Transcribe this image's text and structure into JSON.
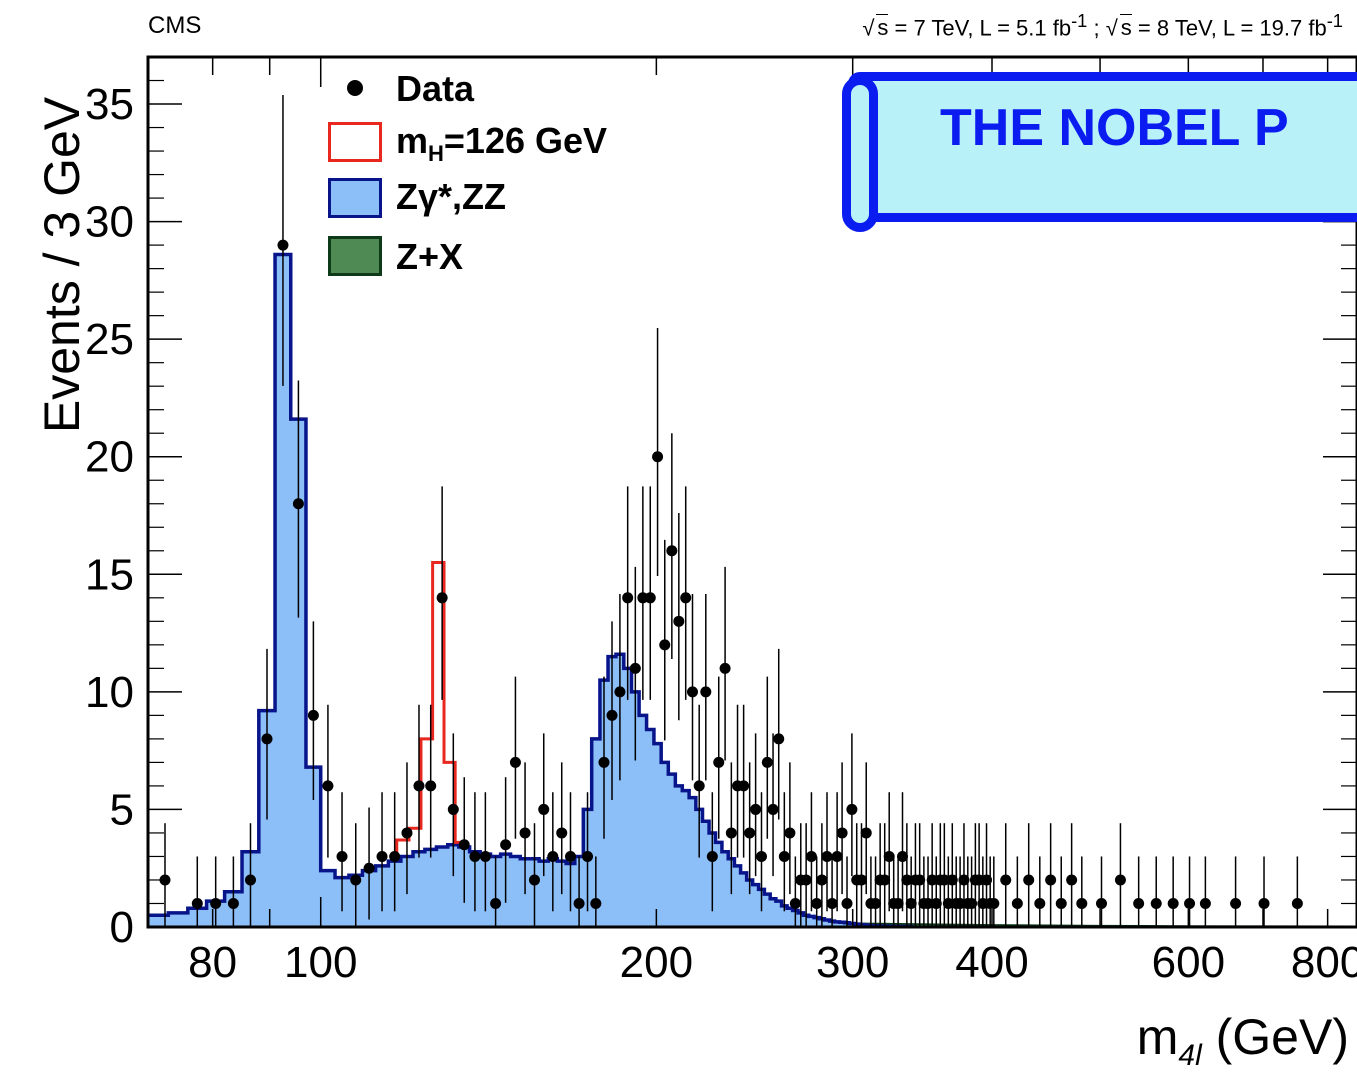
{
  "header": {
    "experiment": "CMS",
    "lumi_parts": [
      "s",
      " = 7 TeV, L = 5.1 fb",
      "-1",
      " ; ",
      "s",
      " = 8 TeV, L = 19.7 fb",
      "-1"
    ]
  },
  "banner": {
    "text": "THE NOBEL P"
  },
  "legend": [
    {
      "label": "Data",
      "icon": "dot-marker"
    },
    {
      "label_main": "m",
      "label_sub": "H",
      "label_rest": "=126 GeV",
      "icon": "red-outline-box"
    },
    {
      "label": "Zγ*,ZZ",
      "icon": "blue-filled-box"
    },
    {
      "label": "Z+X",
      "icon": "green-filled-box"
    }
  ],
  "colors": {
    "signal": "#e8281e",
    "zz_fill": "#8cbef8",
    "zz_line": "#08158a",
    "zx_fill": "#4f8a55",
    "zx_line": "#0d3b1a",
    "banner_fill": "#b8f2f8",
    "banner_border": "#0a1cf0"
  },
  "chart_data": {
    "type": "histogram",
    "title": "",
    "xlabel": "m4l (GeV)",
    "xlabel_main": "m",
    "xlabel_sub": "4l",
    "xlabel_rest": " (GeV)",
    "ylabel": "Events / 3 GeV",
    "x_scale": "log",
    "xlim": [
      70,
      850
    ],
    "ylim": [
      0,
      37
    ],
    "x_ticks": [
      80,
      100,
      200,
      300,
      400,
      600,
      800
    ],
    "y_ticks": [
      0,
      5,
      10,
      15,
      20,
      25,
      30,
      35
    ],
    "grid": false,
    "legend_position": "top-left",
    "bin_width_gev": 3,
    "bin_edges_start": 70,
    "series": [
      {
        "name": "Zγ*,ZZ",
        "style": "filled-step",
        "values": [
          0.5,
          0.6,
          0.8,
          1.1,
          1.5,
          3.2,
          9.2,
          28.6,
          21.6,
          6.8,
          2.4,
          2.1,
          2.2,
          2.4,
          2.6,
          2.8,
          3.0,
          3.2,
          3.3,
          3.4,
          3.5,
          3.4,
          3.2,
          3.1,
          3.0,
          3.1,
          3.0,
          2.9,
          2.9,
          2.8,
          2.9,
          2.8,
          2.7,
          3.0,
          5.0,
          8.0,
          10.5,
          11.5,
          11.6,
          11.0,
          10.0,
          9.0,
          8.4,
          7.8,
          7.0,
          6.5,
          6.0,
          5.8,
          5.5,
          5.0,
          4.5,
          4.0,
          3.6,
          3.2,
          2.9,
          2.6,
          2.3,
          2.0,
          1.8,
          1.6,
          1.4,
          1.2,
          1.1,
          0.9,
          0.8,
          0.7,
          0.6,
          0.5,
          0.45,
          0.4,
          0.35,
          0.3,
          0.25,
          0.22,
          0.2,
          0.18,
          0.15,
          0.12,
          0.1,
          0.08,
          0.06,
          0.05,
          0.04,
          0.03,
          0.03,
          0.02,
          0.02,
          0.02,
          0.02,
          0.02
        ]
      },
      {
        "name": "Z+X",
        "style": "filled-curve",
        "points": [
          [
            70,
            0.05
          ],
          [
            90,
            0.1
          ],
          [
            100,
            0.2
          ],
          [
            110,
            0.5
          ],
          [
            120,
            0.75
          ],
          [
            126,
            0.8
          ],
          [
            135,
            0.75
          ],
          [
            150,
            0.55
          ],
          [
            170,
            0.4
          ],
          [
            200,
            0.3
          ],
          [
            250,
            0.22
          ],
          [
            300,
            0.15
          ],
          [
            400,
            0.08
          ],
          [
            500,
            0.05
          ],
          [
            600,
            0.03
          ],
          [
            850,
            0.02
          ]
        ]
      },
      {
        "name": "mH=126 GeV",
        "style": "outline-step",
        "bins": [
          [
            117,
            3.7
          ],
          [
            120,
            4.2
          ],
          [
            123,
            8.0
          ],
          [
            126,
            15.5
          ],
          [
            129,
            7.0
          ],
          [
            132,
            3.6
          ]
        ]
      },
      {
        "name": "Data",
        "style": "points-with-errors",
        "points": [
          [
            71,
            2
          ],
          [
            76,
            1
          ],
          [
            79,
            1
          ],
          [
            82,
            1
          ],
          [
            85,
            2
          ],
          [
            88,
            8
          ],
          [
            91,
            29
          ],
          [
            94,
            18
          ],
          [
            97,
            9
          ],
          [
            100,
            6
          ],
          [
            103,
            3
          ],
          [
            106,
            2
          ],
          [
            109,
            2.5
          ],
          [
            112,
            3
          ],
          [
            115,
            3
          ],
          [
            118,
            4
          ],
          [
            121,
            6
          ],
          [
            124,
            6
          ],
          [
            127,
            14
          ],
          [
            130,
            5
          ],
          [
            133,
            3.5
          ],
          [
            136,
            3
          ],
          [
            139,
            3
          ],
          [
            142,
            1
          ],
          [
            145,
            3.5
          ],
          [
            148,
            7
          ],
          [
            151,
            4
          ],
          [
            154,
            2
          ],
          [
            157,
            5
          ],
          [
            160,
            3
          ],
          [
            163,
            4
          ],
          [
            166,
            3
          ],
          [
            169,
            1
          ],
          [
            172,
            3
          ],
          [
            175,
            1
          ],
          [
            178,
            7
          ],
          [
            181,
            9
          ],
          [
            184,
            10
          ],
          [
            187,
            14
          ],
          [
            190,
            11
          ],
          [
            193,
            14
          ],
          [
            196,
            14
          ],
          [
            199,
            20
          ],
          [
            202,
            12
          ],
          [
            205,
            16
          ],
          [
            208,
            13
          ],
          [
            211,
            14
          ],
          [
            214,
            10
          ],
          [
            217,
            6
          ],
          [
            220,
            10
          ],
          [
            223,
            3
          ],
          [
            226,
            7
          ],
          [
            229,
            11
          ],
          [
            232,
            4
          ],
          [
            235,
            6
          ],
          [
            238,
            6
          ],
          [
            241,
            4
          ],
          [
            244,
            5
          ],
          [
            247,
            3
          ],
          [
            250,
            7
          ],
          [
            253,
            5
          ],
          [
            256,
            8
          ],
          [
            259,
            3
          ],
          [
            262,
            4
          ],
          [
            265,
            1
          ],
          [
            268,
            2
          ],
          [
            271,
            2
          ],
          [
            274,
            3
          ],
          [
            277,
            1
          ],
          [
            280,
            2
          ],
          [
            283,
            3
          ],
          [
            286,
            1
          ],
          [
            289,
            3
          ],
          [
            292,
            4
          ],
          [
            295,
            1
          ],
          [
            298,
            5
          ],
          [
            301,
            2
          ],
          [
            304,
            2
          ],
          [
            307,
            4
          ],
          [
            310,
            1
          ],
          [
            313,
            1
          ],
          [
            316,
            2
          ],
          [
            319,
            2
          ],
          [
            322,
            3
          ],
          [
            325,
            1
          ],
          [
            328,
            1
          ],
          [
            331,
            3
          ],
          [
            334,
            2
          ],
          [
            337,
            1
          ],
          [
            340,
            2
          ],
          [
            343,
            2
          ],
          [
            346,
            1
          ],
          [
            349,
            1
          ],
          [
            352,
            2
          ],
          [
            355,
            1
          ],
          [
            358,
            2
          ],
          [
            361,
            2
          ],
          [
            364,
            1
          ],
          [
            367,
            2
          ],
          [
            370,
            1
          ],
          [
            373,
            1
          ],
          [
            376,
            2
          ],
          [
            379,
            1
          ],
          [
            382,
            1
          ],
          [
            385,
            2
          ],
          [
            388,
            2
          ],
          [
            391,
            1
          ],
          [
            394,
            2
          ],
          [
            397,
            1
          ],
          [
            400,
            1
          ],
          [
            410,
            2
          ],
          [
            420,
            1
          ],
          [
            430,
            2
          ],
          [
            440,
            1
          ],
          [
            450,
            2
          ],
          [
            460,
            1
          ],
          [
            470,
            2
          ],
          [
            480,
            1
          ],
          [
            500,
            1
          ],
          [
            520,
            2
          ],
          [
            540,
            1
          ],
          [
            560,
            1
          ],
          [
            580,
            1
          ],
          [
            600,
            1
          ],
          [
            620,
            1
          ],
          [
            660,
            1
          ],
          [
            700,
            1
          ],
          [
            750,
            1
          ]
        ]
      }
    ]
  }
}
